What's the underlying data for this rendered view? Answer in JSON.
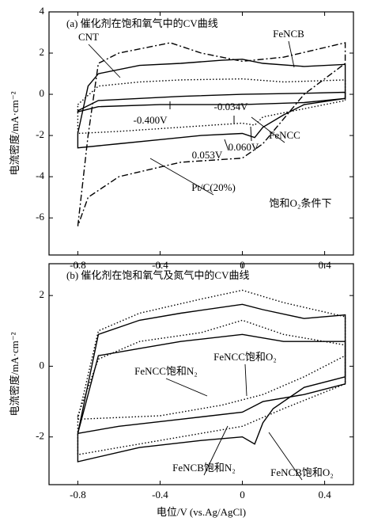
{
  "chart_data": [
    {
      "type": "line",
      "title": "(a) 催化剂在饱和氧气中的CV曲线",
      "note": "饱和O₂条件下",
      "xlim": [
        -0.94,
        0.54
      ],
      "xticks": [
        -0.8,
        -0.4,
        0,
        0.4
      ],
      "ylim": [
        -7.8,
        4
      ],
      "yticks": [
        4,
        2,
        0,
        -2,
        -4,
        -6
      ],
      "ylabel": "电流密度/mA·cm⁻²",
      "annotations": [
        "-0.400V",
        "-0.034V",
        "0.053V",
        "0.060V"
      ],
      "series": [
        {
          "name": "FeNCB",
          "style": "solid",
          "color": "#000000",
          "x": [
            -0.8,
            -0.75,
            -0.7,
            -0.5,
            -0.3,
            -0.1,
            0.0,
            0.1,
            0.3,
            0.5,
            0.5,
            0.3,
            0.2,
            0.1,
            0.06,
            0.0,
            -0.2,
            -0.4,
            -0.6,
            -0.8,
            -0.8
          ],
          "y": [
            -1.9,
            0.4,
            1.0,
            1.4,
            1.5,
            1.65,
            1.7,
            1.5,
            1.35,
            1.45,
            -0.2,
            -0.5,
            -1.0,
            -1.6,
            -2.1,
            -1.9,
            -2.0,
            -2.2,
            -2.4,
            -2.6,
            -1.9
          ]
        },
        {
          "name": "CNT",
          "style": "solid",
          "color": "#000000",
          "x": [
            -0.8,
            -0.7,
            -0.5,
            -0.3,
            0.0,
            0.3,
            0.5,
            0.5,
            0.3,
            0.0,
            -0.4,
            -0.7,
            -0.8,
            -0.8
          ],
          "y": [
            -0.8,
            -0.3,
            -0.2,
            -0.1,
            0.0,
            0.05,
            0.1,
            -0.2,
            -0.4,
            -0.5,
            -0.5,
            -0.6,
            -0.85,
            -0.8
          ]
        },
        {
          "name": "FeNCC",
          "style": "dotted",
          "color": "#000000",
          "x": [
            -0.8,
            -0.7,
            -0.5,
            -0.3,
            0.0,
            0.2,
            0.5,
            0.5,
            0.3,
            0.1,
            0.06,
            0.0,
            -0.3,
            -0.6,
            -0.8,
            -0.8
          ],
          "y": [
            -0.5,
            0.4,
            0.6,
            0.7,
            0.75,
            0.6,
            0.7,
            -0.3,
            -0.7,
            -1.1,
            -1.5,
            -1.4,
            -1.6,
            -1.8,
            -1.9,
            -0.5
          ]
        },
        {
          "name": "Pt/C(20%)",
          "style": "dashdot",
          "color": "#000000",
          "x": [
            -0.8,
            -0.75,
            -0.7,
            -0.6,
            -0.45,
            -0.35,
            -0.2,
            0.0,
            0.2,
            0.5,
            0.5,
            0.3,
            0.1,
            0.0,
            -0.3,
            -0.6,
            -0.75,
            -0.8
          ],
          "y": [
            -6.4,
            -2.0,
            1.5,
            2.0,
            2.3,
            2.5,
            2.0,
            1.6,
            1.8,
            2.5,
            1.5,
            0.0,
            -2.4,
            -3.1,
            -3.3,
            -4.0,
            -5.0,
            -6.4
          ]
        }
      ]
    },
    {
      "type": "line",
      "title": "(b) 催化剂在饱和氧气及氮气中的CV曲线",
      "xlim": [
        -0.94,
        0.54
      ],
      "xticks": [
        -0.8,
        -0.4,
        0,
        0.4
      ],
      "ylim": [
        -3.35,
        2.9
      ],
      "yticks": [
        2,
        0,
        -2
      ],
      "ylabel": "电流密度/mA·cm⁻²",
      "xlabel": "电位/V (vs.Ag/AgCl)",
      "series": [
        {
          "name": "FeNCB饱和O₂",
          "style": "solid",
          "color": "#000000",
          "x": [
            -0.8,
            -0.7,
            -0.5,
            -0.3,
            0.0,
            0.1,
            0.3,
            0.5,
            0.5,
            0.3,
            0.15,
            0.1,
            0.06,
            0.0,
            -0.2,
            -0.5,
            -0.8,
            -0.8
          ],
          "y": [
            -1.9,
            0.9,
            1.3,
            1.5,
            1.75,
            1.6,
            1.35,
            1.45,
            -0.3,
            -0.6,
            -1.2,
            -1.6,
            -2.2,
            -2.0,
            -2.1,
            -2.3,
            -2.7,
            -1.9
          ]
        },
        {
          "name": "FeNCB饱和N₂",
          "style": "dotted",
          "color": "#000000",
          "x": [
            -0.8,
            -0.7,
            -0.5,
            -0.2,
            0.0,
            0.2,
            0.5,
            0.5,
            0.2,
            0.0,
            -0.3,
            -0.6,
            -0.8,
            -0.8
          ],
          "y": [
            -1.5,
            1.0,
            1.5,
            1.9,
            2.15,
            1.8,
            1.4,
            -0.5,
            -1.2,
            -1.7,
            -2.0,
            -2.3,
            -2.5,
            -1.5
          ]
        },
        {
          "name": "FeNCC饱和O₂",
          "style": "solid",
          "color": "#000000",
          "x": [
            -0.8,
            -0.7,
            -0.5,
            -0.3,
            0.0,
            0.2,
            0.5,
            0.5,
            0.3,
            0.1,
            0.0,
            -0.3,
            -0.6,
            -0.8
          ],
          "y": [
            -1.9,
            0.3,
            0.5,
            0.7,
            0.9,
            0.7,
            0.7,
            -0.5,
            -0.8,
            -1.0,
            -1.3,
            -1.5,
            -1.7,
            -1.9
          ]
        },
        {
          "name": "FeNCC饱和N₂",
          "style": "dotted",
          "color": "#000000",
          "x": [
            -0.8,
            -0.7,
            -0.5,
            -0.2,
            0.0,
            0.2,
            0.5,
            0.5,
            0.3,
            0.1,
            -0.1,
            -0.4,
            -0.8,
            -0.8
          ],
          "y": [
            -1.4,
            0.2,
            0.7,
            0.95,
            1.3,
            0.9,
            0.6,
            0.3,
            -0.3,
            -0.8,
            -1.1,
            -1.4,
            -1.5,
            -1.4
          ]
        }
      ]
    }
  ]
}
